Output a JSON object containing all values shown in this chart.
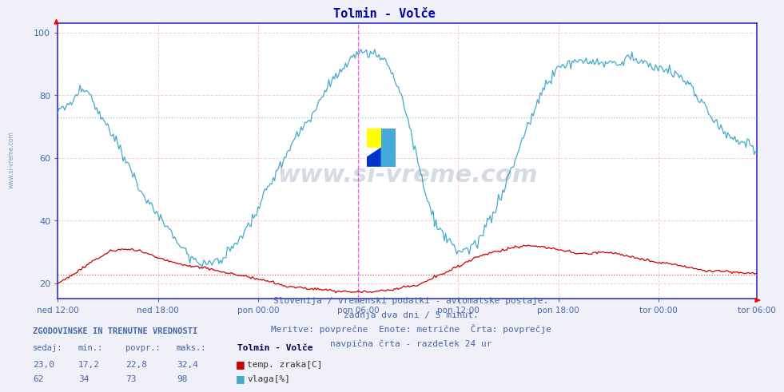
{
  "title": "Tolmin - Volče",
  "bg_color": "#f0f0f8",
  "plot_bg_color": "#ffffff",
  "grid_color_h": "#ffcccc",
  "grid_color_v": "#ffcccc",
  "grid_color_avg_h": "#88ccdd",
  "grid_color_avg_v": "#88ccdd",
  "line_color_temp": "#cc0000",
  "line_color_vlaga": "#44aacc",
  "vline_color": "#ff44ff",
  "axis_color": "#3333cc",
  "text_color": "#4466aa",
  "title_color": "#0000aa",
  "ylim": [
    15,
    103
  ],
  "yticks": [
    20,
    40,
    60,
    80,
    100
  ],
  "xlabel_ticks": [
    "ned 12:00",
    "ned 18:00",
    "pon 00:00",
    "pon 06:00",
    "pon 12:00",
    "pon 18:00",
    "tor 00:00",
    "tor 06:00"
  ],
  "n_points": 504,
  "watermark": "www.si-vreme.com",
  "watermark_color": "#1a3a6a",
  "watermark_alpha": 0.18,
  "info_text_line1": "Slovenija / vremenski podatki - avtomatske postaje.",
  "info_text_line2": "zadnja dva dni / 5 minut.",
  "info_text_line3": "Meritve: povprečne  Enote: metrične  Črta: povprečje",
  "info_text_line4": "navpična črta - razdelek 24 ur",
  "legend_title": "Tolmin - Volče",
  "legend_temp_label": "temp. zraka[C]",
  "legend_vlaga_label": "vlaga[%]",
  "stats_sedaj_temp": "23,0",
  "stats_min_temp": "17,2",
  "stats_povpr_temp": "22,8",
  "stats_maks_temp": "32,4",
  "stats_sedaj_vlaga": "62",
  "stats_min_vlaga": "34",
  "stats_povpr_vlaga": "73",
  "stats_maks_vlaga": "98",
  "hline_temp": 22.8,
  "hline_vlaga": 73.0,
  "vline_24h_idx": 216,
  "xtick_positions": [
    0,
    72,
    144,
    216,
    288,
    360,
    432,
    503
  ]
}
